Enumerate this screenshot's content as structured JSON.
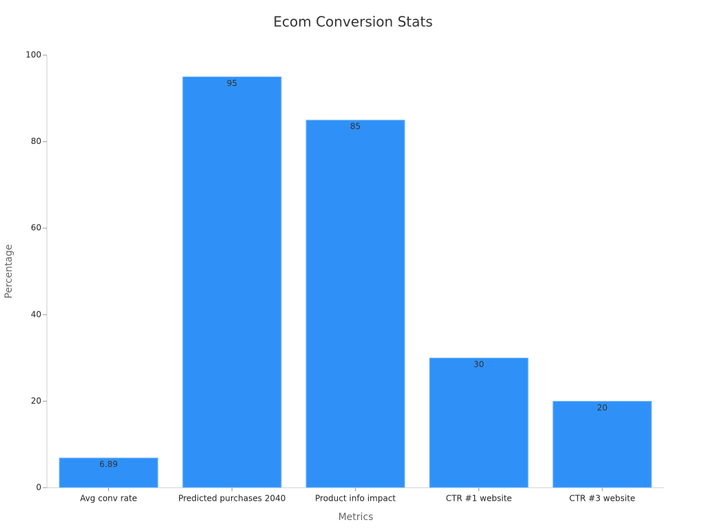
{
  "chart_data": {
    "type": "bar",
    "title": "Ecom Conversion Stats",
    "x_label": "Metrics",
    "y_label": "Percentage",
    "categories": [
      "Avg conv rate",
      "Predicted purchases 2040",
      "Product info impact",
      "CTR #1 website",
      "CTR #3 website"
    ],
    "values": [
      6.89,
      95,
      85,
      30,
      20
    ],
    "color": "#2f91f8",
    "ylim": [
      0,
      100
    ],
    "yticks": [
      0,
      20,
      40,
      60,
      80,
      100
    ],
    "grid": false,
    "data_labels": true
  }
}
